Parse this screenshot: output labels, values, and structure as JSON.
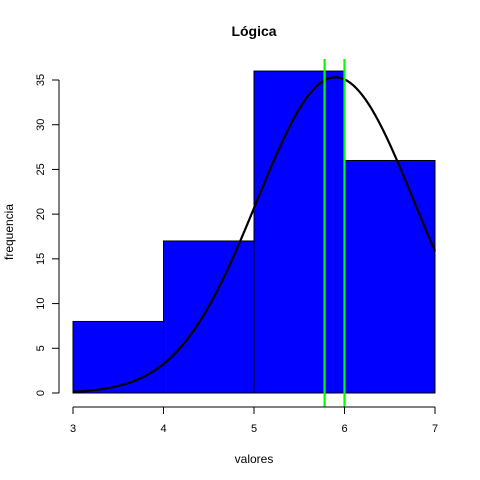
{
  "chart_data": {
    "type": "bar",
    "title": "Lógica",
    "xlabel": "valores",
    "ylabel": "frequencia",
    "bins": [
      [
        3,
        4
      ],
      [
        4,
        5
      ],
      [
        5,
        6
      ],
      [
        6,
        7
      ]
    ],
    "values": [
      8,
      17,
      36,
      26
    ],
    "xlim": [
      3,
      7
    ],
    "ylim": [
      0,
      35
    ],
    "x_ticks": [
      "3",
      "4",
      "5",
      "6",
      "7"
    ],
    "y_ticks": [
      "0",
      "5",
      "10",
      "15",
      "20",
      "25",
      "30",
      "35"
    ],
    "bar_color": "#0000ff",
    "curve": {
      "type": "normal-density",
      "mean": 5.9,
      "sd": 0.87,
      "peak": 35.3,
      "color": "#000000"
    },
    "vertical_lines": [
      {
        "x": 5.78,
        "color": "#00ff00"
      },
      {
        "x": 6.0,
        "color": "#00ff00"
      }
    ],
    "grid": false,
    "legend": "none"
  }
}
